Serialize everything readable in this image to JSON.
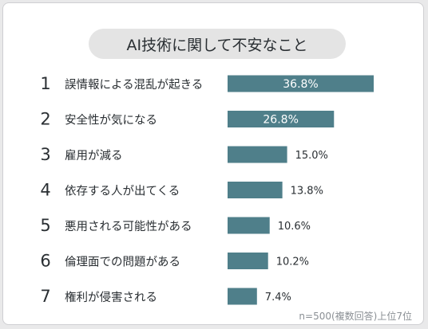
{
  "title": "AI技術に関して不安なこと",
  "footnote": "n=500(複数回答)上位7位",
  "colors": {
    "bar": "#4f7f8a",
    "rank": "#2a2f33",
    "label": "#2a2f33",
    "pill": "#e4e4e4"
  },
  "chart_data": {
    "type": "bar",
    "orientation": "horizontal",
    "title": "AI技術に関して不安なこと",
    "xlabel": "",
    "ylabel": "",
    "xlim": [
      0,
      36.8
    ],
    "grid": false,
    "unit": "%",
    "items": [
      {
        "rank": "1",
        "label": "誤情報による混乱が起きる",
        "value": 36.8,
        "value_label": "36.8%"
      },
      {
        "rank": "2",
        "label": "安全性が気になる",
        "value": 26.8,
        "value_label": "26.8%"
      },
      {
        "rank": "3",
        "label": "雇用が減る",
        "value": 15.0,
        "value_label": "15.0%"
      },
      {
        "rank": "4",
        "label": "依存する人が出てくる",
        "value": 13.8,
        "value_label": "13.8%"
      },
      {
        "rank": "5",
        "label": "悪用される可能性がある",
        "value": 10.6,
        "value_label": "10.6%"
      },
      {
        "rank": "6",
        "label": "倫理面での問題がある",
        "value": 10.2,
        "value_label": "10.2%"
      },
      {
        "rank": "7",
        "label": "権利が侵害される",
        "value": 7.4,
        "value_label": "7.4%"
      }
    ]
  }
}
